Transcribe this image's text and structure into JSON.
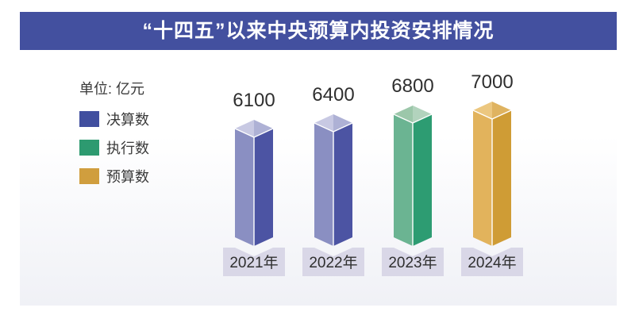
{
  "header": {
    "title": "“十四五”以来中央预算内投资安排情况",
    "bar_color": "#43509f",
    "text_color": "#ffffff"
  },
  "legend": {
    "unit_label": "单位: 亿元",
    "items": [
      {
        "label": "决算数",
        "color": "#414f9f"
      },
      {
        "label": "执行数",
        "color": "#2d9a70"
      },
      {
        "label": "预算数",
        "color": "#d09e3e"
      }
    ]
  },
  "chart_data": {
    "type": "bar",
    "title": "“十四五”以来中央预算内投资安排情况",
    "unit": "亿元",
    "categories": [
      "2021年",
      "2022年",
      "2023年",
      "2024年"
    ],
    "values": [
      6100,
      6400,
      6800,
      7000
    ],
    "bar_series": [
      "决算数",
      "决算数",
      "执行数",
      "预算数"
    ],
    "ylim": [
      0,
      7000
    ],
    "grid": false,
    "legend_position": "left",
    "value_label_color": "#2f2f2f",
    "category_box_color": "#d9d7e7",
    "bar_styles": {
      "决算数": {
        "left": "#8a8fc2",
        "right": "#4c54a3",
        "topLeft": "#c8c9e3",
        "topRight": "#aeb1d5"
      },
      "执行数": {
        "left": "#6bb492",
        "right": "#2d9c72",
        "topLeft": "#9cc7aa",
        "topRight": "#b2d3bd"
      },
      "预算数": {
        "left": "#e2b35c",
        "right": "#cf9c35",
        "topLeft": "#ecc77f",
        "topRight": "#dfb360"
      }
    }
  }
}
